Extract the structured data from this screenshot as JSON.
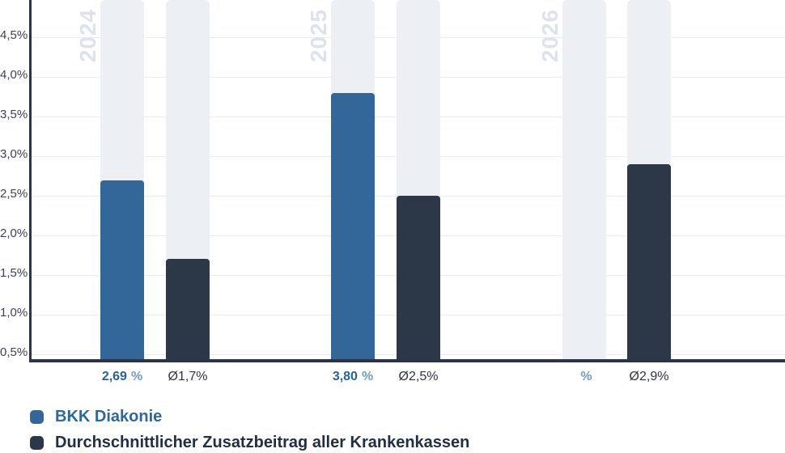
{
  "chart_data": {
    "type": "bar",
    "title": "",
    "categories": [
      "2024",
      "2025",
      "2026"
    ],
    "series": [
      {
        "name": "BKK Diakonie",
        "color": "#346799",
        "values": [
          2.69,
          3.8,
          null
        ],
        "value_labels": [
          "2,69",
          "3,80",
          ""
        ],
        "value_suffix": "%"
      },
      {
        "name": "Durchschnittlicher Zusatzbeitrag aller Krankenkassen",
        "color": "#2C3748",
        "values": [
          1.7,
          2.5,
          2.9
        ],
        "value_labels": [
          "Ø1,7%",
          "Ø2,5%",
          "Ø2,9%"
        ]
      }
    ],
    "y_axis": {
      "unit": "%",
      "tick_labels": [
        "4,5%",
        "4,0%",
        "3,5%",
        "3,0%",
        "2,5%",
        "2,0%",
        "1,5%",
        "1,0%",
        "0,5%"
      ],
      "tick_values": [
        4.5,
        4.0,
        3.5,
        3.0,
        2.5,
        2.0,
        1.5,
        1.0,
        0.5
      ],
      "min": 0.44,
      "max": 4.97
    },
    "grid": true,
    "legend_position": "bottom-left",
    "background_band_color": "#ECEFF4",
    "year_watermark_color": "#DCE3ED",
    "axis_color": "#2B3547"
  }
}
